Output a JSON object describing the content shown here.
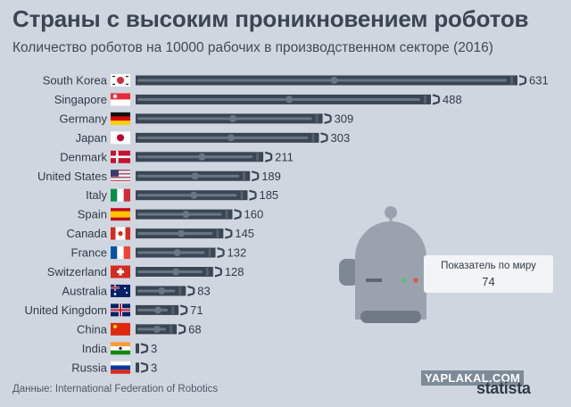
{
  "header": {
    "title": "Страны с высоким проникновением роботов",
    "subtitle": "Количество роботов на 10000 рабочих в производственном секторе (2016)"
  },
  "chart_data": {
    "type": "bar",
    "title": "Страны с высоким проникновением роботов",
    "subtitle": "Количество роботов на 10000 рабочих в производственном секторе (2016)",
    "categories": [
      "South Korea",
      "Singapore",
      "Germany",
      "Japan",
      "Denmark",
      "United States",
      "Italy",
      "Spain",
      "Canada",
      "France",
      "Switzerland",
      "Australia",
      "United Kingdom",
      "China",
      "India",
      "Russia"
    ],
    "values": [
      631,
      488,
      309,
      303,
      211,
      189,
      185,
      160,
      145,
      132,
      128,
      83,
      71,
      68,
      3,
      3
    ],
    "xlim": [
      0,
      631
    ],
    "grid": false,
    "legend": "none",
    "bar_color": "#3a4653",
    "annotation": {
      "label": "Показатель по миру",
      "value": 74
    }
  },
  "source": "Данные: International Federation of Robotics",
  "watermark": "YAPLAKAL.COM",
  "brand": "statista",
  "colors": {
    "background": "#cfd6df",
    "bar": "#3a4653",
    "title": "#3b4652",
    "robot": "#9aa3ad"
  }
}
